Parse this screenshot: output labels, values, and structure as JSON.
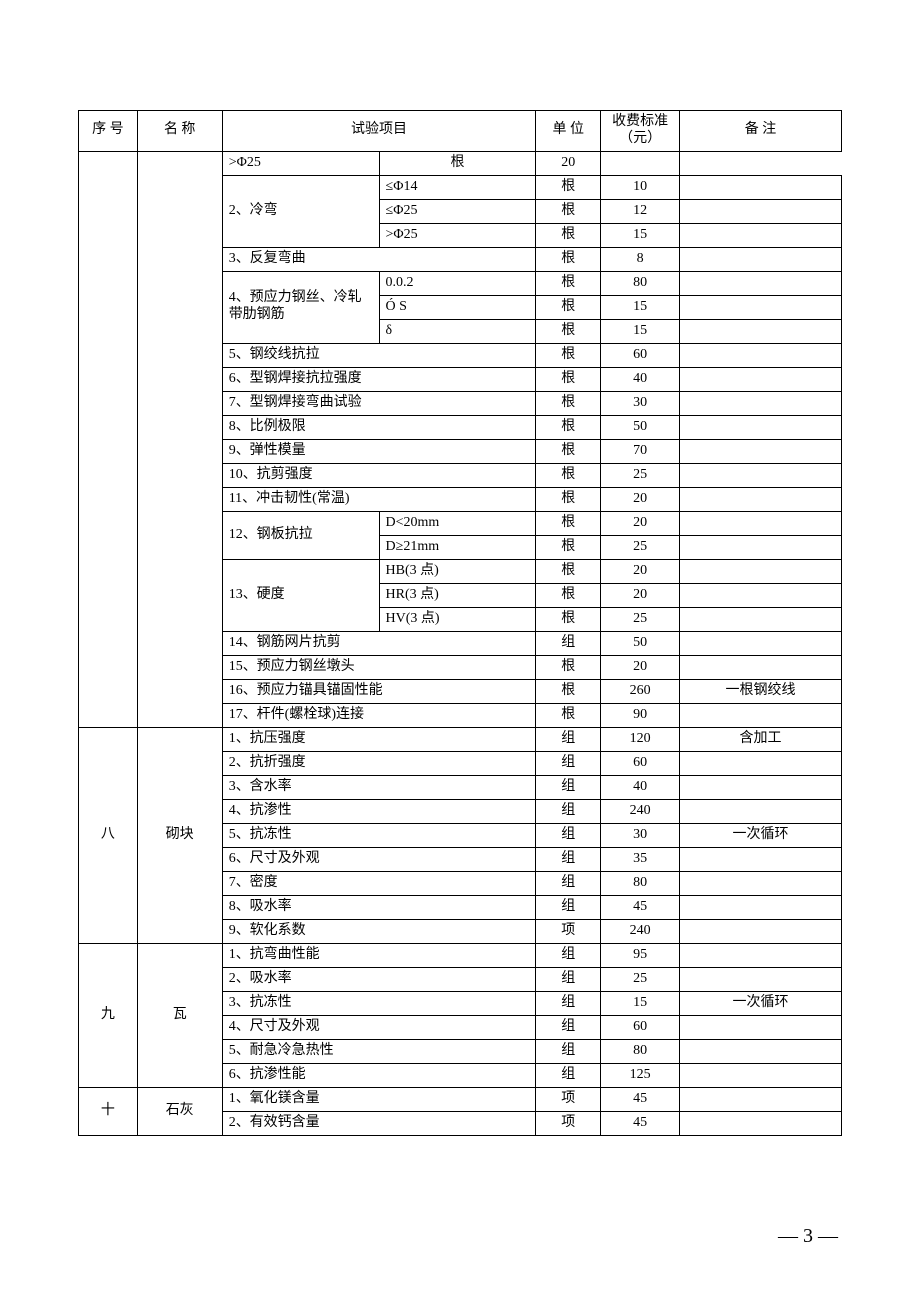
{
  "header": {
    "seq": "序 号",
    "name": "名   称",
    "test": "试验项目",
    "unit": "单 位",
    "fee": "收费标准（元）",
    "note": "备       注"
  },
  "pageNumber": "— 3 —",
  "rows": [
    {
      "type": "sub",
      "test2": ">Φ25",
      "unit": "根",
      "fee": "20",
      "note": ""
    },
    {
      "type": "group3",
      "test1": "2、冷弯",
      "test2": "≤Φ14",
      "unit": "根",
      "fee": "10",
      "note": ""
    },
    {
      "type": "sub",
      "test2": "≤Φ25",
      "unit": "根",
      "fee": "12",
      "note": ""
    },
    {
      "type": "sub",
      "test2": ">Φ25",
      "unit": "根",
      "fee": "15",
      "note": ""
    },
    {
      "type": "full",
      "test": "3、反复弯曲",
      "unit": "根",
      "fee": "8",
      "note": ""
    },
    {
      "type": "group3",
      "test1": "4、预应力钢丝、冷轧带肋钢筋",
      "test2": "0.0.2",
      "unit": "根",
      "fee": "80",
      "note": ""
    },
    {
      "type": "sub",
      "test2": "Ó S",
      "unit": "根",
      "fee": "15",
      "note": ""
    },
    {
      "type": "sub",
      "test2": "δ",
      "unit": "根",
      "fee": "15",
      "note": ""
    },
    {
      "type": "full",
      "test": "5、钢绞线抗拉",
      "unit": "根",
      "fee": "60",
      "note": ""
    },
    {
      "type": "full",
      "test": "6、型钢焊接抗拉强度",
      "unit": "根",
      "fee": "40",
      "note": ""
    },
    {
      "type": "full",
      "test": "7、型钢焊接弯曲试验",
      "unit": "根",
      "fee": "30",
      "note": ""
    },
    {
      "type": "full",
      "test": "8、比例极限",
      "unit": "根",
      "fee": "50",
      "note": ""
    },
    {
      "type": "full",
      "test": "9、弹性模量",
      "unit": "根",
      "fee": "70",
      "note": ""
    },
    {
      "type": "full",
      "test": "10、抗剪强度",
      "unit": "根",
      "fee": "25",
      "note": ""
    },
    {
      "type": "full",
      "test": "11、冲击韧性(常温)",
      "unit": "根",
      "fee": "20",
      "note": ""
    },
    {
      "type": "group2",
      "test1": "12、钢板抗拉",
      "test2": "D<20mm",
      "unit": "根",
      "fee": "20",
      "note": ""
    },
    {
      "type": "sub",
      "test2": "D≥21mm",
      "unit": "根",
      "fee": "25",
      "note": ""
    },
    {
      "type": "group3",
      "test1": "13、硬度",
      "test2": "HB(3 点)",
      "unit": "根",
      "fee": "20",
      "note": ""
    },
    {
      "type": "sub",
      "test2": "HR(3 点)",
      "unit": "根",
      "fee": "20",
      "note": ""
    },
    {
      "type": "sub",
      "test2": "HV(3 点)",
      "unit": "根",
      "fee": "25",
      "note": ""
    },
    {
      "type": "full",
      "test": "14、钢筋网片抗剪",
      "unit": "组",
      "fee": "50",
      "note": ""
    },
    {
      "type": "full",
      "test": "15、预应力钢丝墩头",
      "unit": "根",
      "fee": "20",
      "note": ""
    },
    {
      "type": "full",
      "test": "16、预应力锚具锚固性能",
      "unit": "根",
      "fee": "260",
      "note": "一根钢绞线"
    },
    {
      "type": "full",
      "test": "17、杆件(螺栓球)连接",
      "unit": "根",
      "fee": "90",
      "note": ""
    }
  ],
  "section8": {
    "seq": "八",
    "name": "砌块",
    "rows": [
      {
        "test": "1、抗压强度",
        "unit": "组",
        "fee": "120",
        "note": "含加工"
      },
      {
        "test": "2、抗折强度",
        "unit": "组",
        "fee": "60",
        "note": ""
      },
      {
        "test": "3、含水率",
        "unit": "组",
        "fee": "40",
        "note": ""
      },
      {
        "test": "4、抗渗性",
        "unit": "组",
        "fee": "240",
        "note": ""
      },
      {
        "test": "5、抗冻性",
        "unit": "组",
        "fee": "30",
        "note": "一次循环"
      },
      {
        "test": "6、尺寸及外观",
        "unit": "组",
        "fee": "35",
        "note": ""
      },
      {
        "test": "7、密度",
        "unit": "组",
        "fee": "80",
        "note": ""
      },
      {
        "test": "8、吸水率",
        "unit": "组",
        "fee": "45",
        "note": ""
      },
      {
        "test": "9、软化系数",
        "unit": "项",
        "fee": "240",
        "note": ""
      }
    ]
  },
  "section9": {
    "seq": "九",
    "name": "瓦",
    "rows": [
      {
        "test": "1、抗弯曲性能",
        "unit": "组",
        "fee": "95",
        "note": ""
      },
      {
        "test": "2、吸水率",
        "unit": "组",
        "fee": "25",
        "note": ""
      },
      {
        "test": "3、抗冻性",
        "unit": "组",
        "fee": "15",
        "note": "一次循环"
      },
      {
        "test": "4、尺寸及外观",
        "unit": "组",
        "fee": "60",
        "note": ""
      },
      {
        "test": "5、耐急冷急热性",
        "unit": "组",
        "fee": "80",
        "note": ""
      },
      {
        "test": "6、抗渗性能",
        "unit": "组",
        "fee": "125",
        "note": ""
      }
    ]
  },
  "section10": {
    "seq": "十",
    "name": "石灰",
    "rows": [
      {
        "test": "1、氧化镁含量",
        "unit": "项",
        "fee": "45",
        "note": ""
      },
      {
        "test": "2、有效钙含量",
        "unit": "项",
        "fee": "45",
        "note": ""
      }
    ]
  }
}
